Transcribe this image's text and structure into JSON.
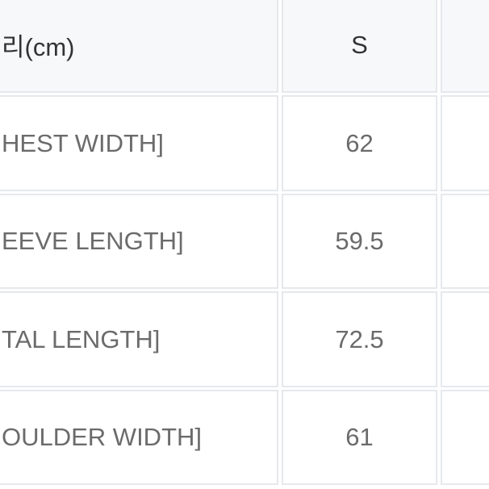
{
  "table": {
    "header": [
      "리(cm)",
      "S"
    ],
    "rows": [
      [
        "HEST WIDTH]",
        "62"
      ],
      [
        "EEVE LENGTH]",
        "59.5"
      ],
      [
        "TAL LENGTH]",
        "72.5"
      ],
      [
        "OULDER WIDTH]",
        "61"
      ]
    ]
  }
}
